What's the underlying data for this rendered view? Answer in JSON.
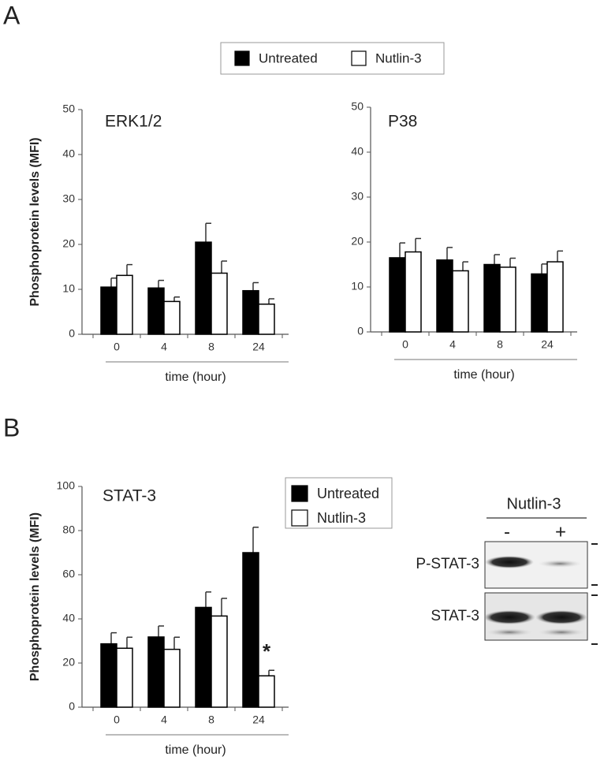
{
  "panels": [
    "A",
    "B"
  ],
  "blot": {
    "title": "Nutlin-3",
    "lanes": [
      "-",
      "+"
    ],
    "rows": [
      "P-STAT-3",
      "STAT-3"
    ]
  },
  "chart_data": [
    {
      "type": "bar",
      "title": "ERK1/2",
      "ylabel": "Phosphoprotein levels (MFI)",
      "xlabel": "time (hour)",
      "categories": [
        "0",
        "4",
        "8",
        "24"
      ],
      "legend": "above",
      "series": [
        {
          "name": "Untreated",
          "color": "#000000",
          "values": [
            10.5,
            10.3,
            20.5,
            9.7
          ],
          "errors": [
            2,
            1.7,
            4.2,
            1.8
          ]
        },
        {
          "name": "Nutlin-3",
          "color": "#ffffff",
          "values": [
            13.1,
            7.3,
            13.6,
            6.7
          ],
          "errors": [
            2.4,
            1,
            2.7,
            1.2
          ]
        }
      ],
      "ylim": [
        0,
        50
      ],
      "yticks": [
        0,
        10,
        20,
        30,
        40,
        50
      ]
    },
    {
      "type": "bar",
      "title": "P38",
      "xlabel": "time (hour)",
      "categories": [
        "0",
        "4",
        "8",
        "24"
      ],
      "series": [
        {
          "name": "Untreated",
          "color": "#000000",
          "values": [
            16.5,
            16,
            15,
            12.9
          ],
          "errors": [
            3.3,
            2.8,
            2.2,
            2.2
          ]
        },
        {
          "name": "Nutlin-3",
          "color": "#ffffff",
          "values": [
            17.8,
            13.6,
            14.4,
            15.6
          ],
          "errors": [
            3,
            2,
            2,
            2.4
          ]
        }
      ],
      "ylim": [
        0,
        50
      ],
      "yticks": [
        0,
        10,
        20,
        30,
        40,
        50
      ]
    },
    {
      "type": "bar",
      "title": "STAT-3",
      "ylabel": "Phosphoprotein levels (MFI)",
      "xlabel": "time (hour)",
      "categories": [
        "0",
        "4",
        "8",
        "24"
      ],
      "legend": "upper right",
      "annotation": "*",
      "series": [
        {
          "name": "Untreated",
          "color": "#000000",
          "values": [
            28.7,
            31.8,
            45.2,
            70
          ],
          "errors": [
            5,
            5,
            7,
            11.5
          ]
        },
        {
          "name": "Nutlin-3",
          "color": "#ffffff",
          "values": [
            26.7,
            26.2,
            41.3,
            14.2
          ],
          "errors": [
            5,
            5.5,
            8,
            2.5
          ]
        }
      ],
      "ylim": [
        0,
        100
      ],
      "yticks": [
        0,
        20,
        40,
        60,
        80,
        100
      ]
    }
  ]
}
